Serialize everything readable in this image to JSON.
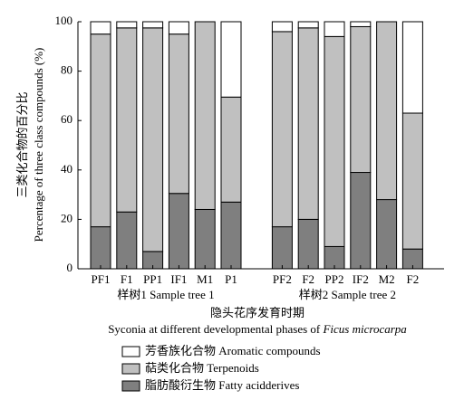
{
  "chart_data": {
    "type": "stacked_bar",
    "ylabel_cn": "三类化合物的百分比",
    "ylabel_en": "Percentage of three class compounds (%)",
    "xlabel_cn": "隐头花序发育时期",
    "xlabel_en": "Syconia at different developmental phases of",
    "xlabel_species": "Ficus microcarpa",
    "groups": [
      "样树1 Sample tree 1",
      "样树2 Sample tree 2"
    ],
    "categories": [
      "PF1",
      "F1",
      "PP1",
      "IF1",
      "M1",
      "P1",
      "PF2",
      "F2",
      "PP2",
      "IF2",
      "M2",
      "F2"
    ],
    "series": [
      {
        "name": "脂肪酸衍生物 Fatty acidderives",
        "color": "#7f7f7f",
        "values": [
          17,
          23,
          7,
          30.5,
          24,
          27,
          17,
          20,
          9,
          39,
          28,
          8
        ]
      },
      {
        "name": "萜类化合物 Terpenoids",
        "color": "#c0c0c0",
        "values": [
          78,
          74.5,
          90.5,
          64.5,
          76,
          42.5,
          79,
          77.5,
          85,
          59,
          72,
          55
        ]
      },
      {
        "name": "芳香族化合物 Aromatic compounds",
        "color": "#ffffff",
        "values": [
          5,
          2.5,
          2.5,
          5,
          0,
          30.5,
          4,
          2.5,
          6,
          2,
          0,
          37
        ]
      }
    ],
    "ylim": [
      0,
      100
    ],
    "yticks": [
      0,
      20,
      40,
      60,
      80,
      100
    ]
  }
}
